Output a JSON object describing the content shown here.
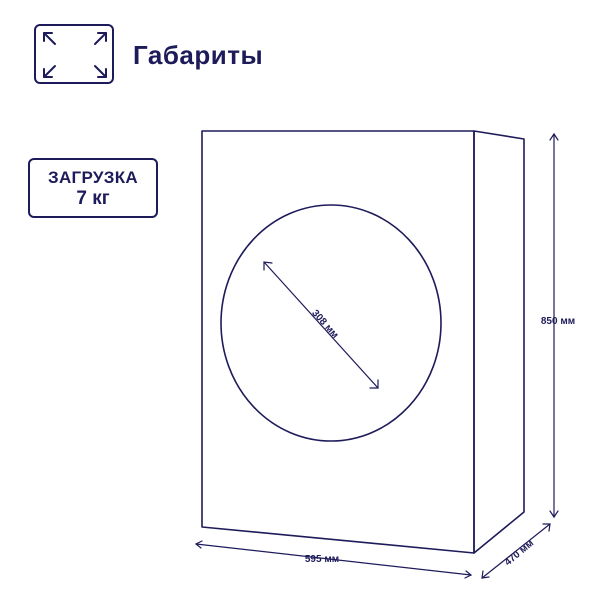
{
  "header": {
    "icon": "expand-arrows-icon",
    "title": "Габариты"
  },
  "load": {
    "label": "ЗАГРУЗКА",
    "value": "7 кг"
  },
  "dimensions": {
    "door_diameter": "308 мм",
    "height": "850 мм",
    "width": "595 мм",
    "depth": "470 мм"
  },
  "colors": {
    "primary": "#1e1b5a"
  }
}
